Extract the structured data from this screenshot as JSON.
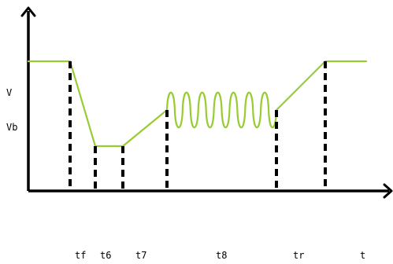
{
  "colors": {
    "waveform": "#99cc33",
    "axes": "#000000",
    "markers": "#000000",
    "background": "#ffffff"
  },
  "y_labels": {
    "v": "V",
    "vb": "Vb"
  },
  "x_labels": {
    "tf": "tf",
    "t6": "t6",
    "t7": "t7",
    "t8": "t8",
    "tr": "tr",
    "t": "t"
  }
}
